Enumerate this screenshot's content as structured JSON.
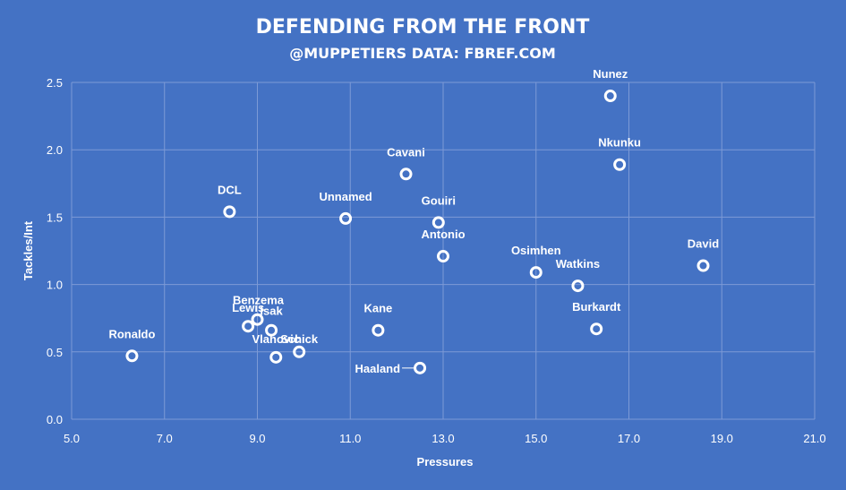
{
  "chart_data": {
    "type": "scatter",
    "title": "DEFENDING FROM THE FRONT",
    "subtitle": "@MUPPETIERS DATA: FBREF.COM",
    "xlabel": "Pressures",
    "ylabel": "Tackles/Int",
    "xlim": [
      5.0,
      21.0
    ],
    "ylim": [
      0.0,
      2.5
    ],
    "x_ticks": [
      "5.0",
      "7.0",
      "9.0",
      "11.0",
      "13.0",
      "15.0",
      "17.0",
      "19.0",
      "21.0"
    ],
    "y_ticks": [
      "0.0",
      "0.5",
      "1.0",
      "1.5",
      "2.0",
      "2.5"
    ],
    "grid": true,
    "colors": {
      "background": "#4472c4",
      "grid": "#7d9ad6",
      "marker": "#ffffff"
    },
    "points": [
      {
        "label": "Nunez",
        "x": 16.6,
        "y": 2.4
      },
      {
        "label": "Nkunku",
        "x": 16.8,
        "y": 1.89
      },
      {
        "label": "Cavani",
        "x": 12.2,
        "y": 1.82
      },
      {
        "label": "DCL",
        "x": 8.4,
        "y": 1.54
      },
      {
        "label": "Unnamed",
        "x": 10.9,
        "y": 1.49
      },
      {
        "label": "Gouiri",
        "x": 12.9,
        "y": 1.46
      },
      {
        "label": "Antonio",
        "x": 13.0,
        "y": 1.21
      },
      {
        "label": "Osimhen",
        "x": 15.0,
        "y": 1.09
      },
      {
        "label": "David",
        "x": 18.6,
        "y": 1.14
      },
      {
        "label": "Watkins",
        "x": 15.9,
        "y": 0.99
      },
      {
        "label": "Benzema",
        "x": 9.0,
        "y": 0.74
      },
      {
        "label": "Lewis",
        "x": 8.8,
        "y": 0.69
      },
      {
        "label": "Isak",
        "x": 9.3,
        "y": 0.66
      },
      {
        "label": "Schick",
        "x": 9.9,
        "y": 0.5
      },
      {
        "label": "Vlahovic",
        "x": 9.4,
        "y": 0.46
      },
      {
        "label": "Kane",
        "x": 11.6,
        "y": 0.66
      },
      {
        "label": "Burkardt",
        "x": 16.3,
        "y": 0.67
      },
      {
        "label": "Ronaldo",
        "x": 6.3,
        "y": 0.47
      },
      {
        "label": "Haaland",
        "x": 12.5,
        "y": 0.38
      }
    ]
  }
}
